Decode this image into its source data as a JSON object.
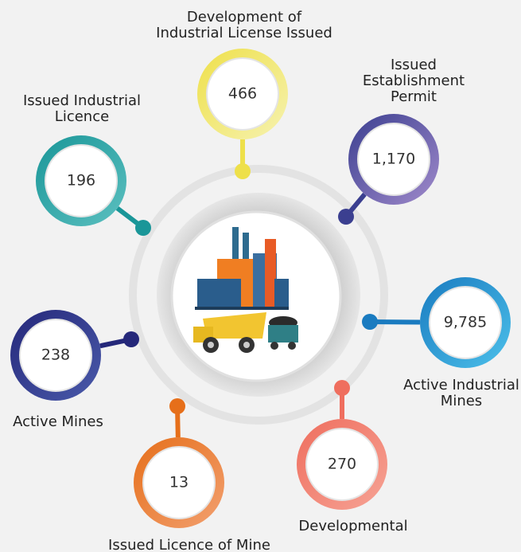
{
  "nodes": [
    {
      "label": [
        "Development of",
        "Industrial License Issued"
      ],
      "value": "466"
    },
    {
      "label": [
        "Issued",
        "Establishment",
        "Permit"
      ],
      "value": "1,170"
    },
    {
      "label": [
        "Issued Industrial",
        "Licence"
      ],
      "value": "196"
    },
    {
      "label": [
        "Active Industrial",
        "Mines"
      ],
      "value": "9,785"
    },
    {
      "label": [
        "Active Mines"
      ],
      "value": "238"
    },
    {
      "label": [
        "Issued Licence of Mine"
      ],
      "value": "13"
    },
    {
      "label": [
        "Developmental"
      ],
      "value": "270"
    }
  ]
}
